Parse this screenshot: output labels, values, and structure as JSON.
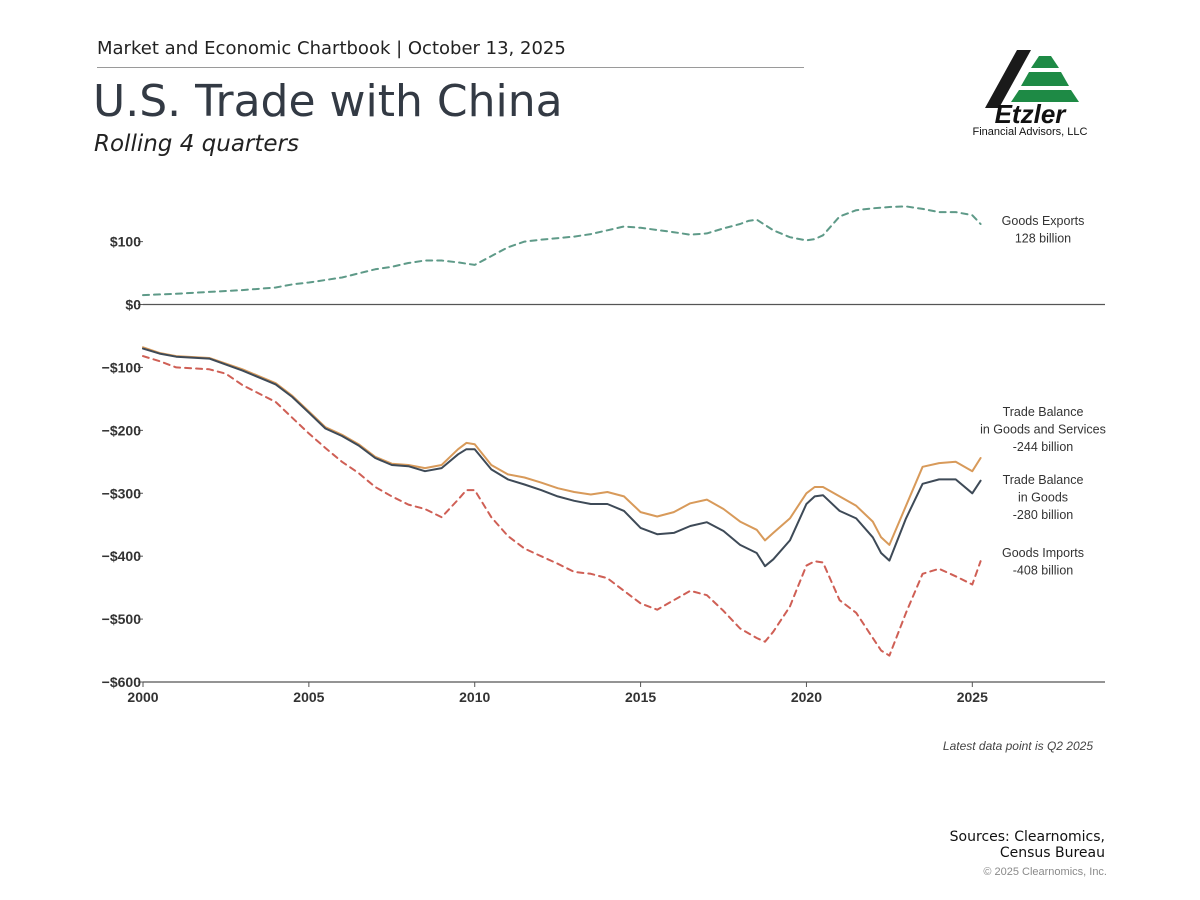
{
  "header": {
    "context": "Market and Economic Chartbook | October 13, 2025",
    "title": "U.S. Trade with China",
    "subtitle": "Rolling 4 quarters"
  },
  "logo": {
    "word": "Etzler",
    "subtitle": "Financial Advisors, LLC",
    "colors": {
      "dark": "#1a1a1a",
      "green": "#1e8a45"
    }
  },
  "footer": {
    "latest_note": "Latest data point is Q2 2025",
    "sources_line1": "Sources: Clearnomics,",
    "sources_line2": "Census Bureau",
    "copyright": "© 2025 Clearnomics, Inc."
  },
  "chart_data": {
    "type": "line",
    "title": "U.S. Trade with China",
    "xlim": [
      2000,
      2029
    ],
    "ylim": [
      -600,
      190
    ],
    "x_ticks": [
      2000,
      2005,
      2010,
      2015,
      2020,
      2025
    ],
    "x_tick_labels": [
      "2000",
      "2005",
      "2010",
      "2015",
      "2020",
      "2025"
    ],
    "y_ticks": [
      100,
      0,
      -100,
      -200,
      -300,
      -400,
      -500,
      -600
    ],
    "y_tick_labels": [
      "$100",
      "$0",
      "−$100",
      "−$200",
      "−$300",
      "−$400",
      "−$500",
      "−$600"
    ],
    "zero_line": true,
    "series": [
      {
        "name": "Goods Exports",
        "label_lines": [
          "Goods Exports",
          "128 billion"
        ],
        "color": "#5e9a88",
        "dashed": true,
        "x": [
          2000,
          2001,
          2002,
          2003,
          2003.5,
          2004,
          2004.5,
          2005,
          2006,
          2007,
          2007.5,
          2008,
          2008.5,
          2009,
          2009.5,
          2010,
          2011,
          2011.5,
          2012,
          2013,
          2013.5,
          2014,
          2014.5,
          2015,
          2016,
          2016.5,
          2017,
          2017.5,
          2018,
          2018.25,
          2018.5,
          2019,
          2019.5,
          2020,
          2020.25,
          2020.5,
          2021,
          2021.5,
          2022,
          2022.5,
          2023,
          2023.5,
          2024,
          2024.5,
          2025,
          2025.25
        ],
        "y": [
          15,
          17,
          20,
          23,
          25,
          27,
          32,
          35,
          43,
          56,
          60,
          66,
          70,
          70,
          67,
          63,
          91,
          100,
          103,
          108,
          112,
          118,
          124,
          122,
          115,
          111,
          113,
          121,
          128,
          133,
          135,
          118,
          107,
          102,
          104,
          110,
          140,
          150,
          153,
          155,
          156,
          152,
          147,
          147,
          142,
          128
        ]
      },
      {
        "name": "Trade Balance in Goods and Services",
        "label_lines": [
          "Trade Balance",
          "in Goods and Services",
          "-244 billion"
        ],
        "color": "#d89a5a",
        "dashed": false,
        "x": [
          2000,
          2000.5,
          2001,
          2002,
          2003,
          2004,
          2004.5,
          2005,
          2005.5,
          2006,
          2006.5,
          2007,
          2007.5,
          2008,
          2008.5,
          2009,
          2009.5,
          2009.75,
          2010,
          2010.5,
          2011,
          2011.5,
          2012,
          2012.5,
          2013,
          2013.5,
          2014,
          2014.5,
          2015,
          2015.5,
          2016,
          2016.5,
          2017,
          2017.5,
          2018,
          2018.5,
          2018.75,
          2019,
          2019.5,
          2020,
          2020.25,
          2020.5,
          2021,
          2021.5,
          2022,
          2022.25,
          2022.5,
          2023,
          2023.5,
          2024,
          2024.5,
          2025,
          2025.25
        ],
        "y": [
          -68,
          -77,
          -82,
          -85,
          -103,
          -125,
          -145,
          -170,
          -195,
          -207,
          -222,
          -242,
          -253,
          -255,
          -260,
          -255,
          -230,
          -220,
          -222,
          -255,
          -270,
          -275,
          -283,
          -292,
          -298,
          -302,
          -298,
          -305,
          -330,
          -337,
          -330,
          -316,
          -310,
          -325,
          -345,
          -358,
          -375,
          -363,
          -340,
          -300,
          -290,
          -290,
          -305,
          -320,
          -345,
          -370,
          -382,
          -320,
          -258,
          -252,
          -250,
          -265,
          -244
        ]
      },
      {
        "name": "Trade Balance in Goods",
        "label_lines": [
          "Trade Balance",
          "in Goods",
          "-280 billion"
        ],
        "color": "#3e4a57",
        "dashed": false,
        "x": [
          2000,
          2000.5,
          2001,
          2002,
          2003,
          2004,
          2004.5,
          2005,
          2005.5,
          2006,
          2006.5,
          2007,
          2007.5,
          2008,
          2008.5,
          2009,
          2009.5,
          2009.75,
          2010,
          2010.5,
          2011,
          2011.5,
          2012,
          2012.5,
          2013,
          2013.5,
          2014,
          2014.5,
          2015,
          2015.5,
          2016,
          2016.5,
          2017,
          2017.5,
          2018,
          2018.5,
          2018.75,
          2019,
          2019.5,
          2020,
          2020.25,
          2020.5,
          2021,
          2021.5,
          2022,
          2022.25,
          2022.5,
          2023,
          2023.5,
          2024,
          2024.5,
          2025,
          2025.25
        ],
        "y": [
          -70,
          -78,
          -83,
          -86,
          -105,
          -127,
          -147,
          -172,
          -197,
          -209,
          -224,
          -244,
          -255,
          -257,
          -265,
          -260,
          -238,
          -230,
          -230,
          -262,
          -278,
          -286,
          -295,
          -305,
          -312,
          -317,
          -317,
          -328,
          -355,
          -365,
          -363,
          -352,
          -346,
          -360,
          -382,
          -395,
          -416,
          -405,
          -375,
          -317,
          -305,
          -303,
          -328,
          -340,
          -370,
          -395,
          -407,
          -340,
          -285,
          -278,
          -278,
          -300,
          -280
        ]
      },
      {
        "name": "Goods Imports",
        "label_lines": [
          "Goods Imports",
          "-408 billion"
        ],
        "color": "#cf5f55",
        "dashed": true,
        "x": [
          2000,
          2000.5,
          2001,
          2002,
          2002.5,
          2003,
          2004,
          2004.5,
          2005,
          2005.5,
          2006,
          2006.5,
          2007,
          2007.5,
          2008,
          2008.5,
          2009,
          2009.5,
          2009.75,
          2010,
          2010.5,
          2011,
          2011.5,
          2012,
          2012.5,
          2013,
          2013.5,
          2014,
          2014.5,
          2015,
          2015.5,
          2016,
          2016.5,
          2017,
          2017.5,
          2018,
          2018.5,
          2018.75,
          2019,
          2019.5,
          2020,
          2020.25,
          2020.5,
          2021,
          2021.5,
          2022,
          2022.25,
          2022.5,
          2023,
          2023.5,
          2024,
          2024.5,
          2025,
          2025.25
        ],
        "y": [
          -82,
          -90,
          -100,
          -103,
          -110,
          -128,
          -155,
          -180,
          -205,
          -228,
          -250,
          -268,
          -290,
          -305,
          -318,
          -325,
          -338,
          -310,
          -295,
          -295,
          -338,
          -368,
          -388,
          -400,
          -412,
          -425,
          -428,
          -435,
          -455,
          -475,
          -485,
          -470,
          -455,
          -462,
          -487,
          -515,
          -530,
          -536,
          -520,
          -480,
          -415,
          -408,
          -410,
          -470,
          -490,
          -530,
          -550,
          -558,
          -490,
          -428,
          -420,
          -432,
          -445,
          -408
        ]
      }
    ]
  }
}
